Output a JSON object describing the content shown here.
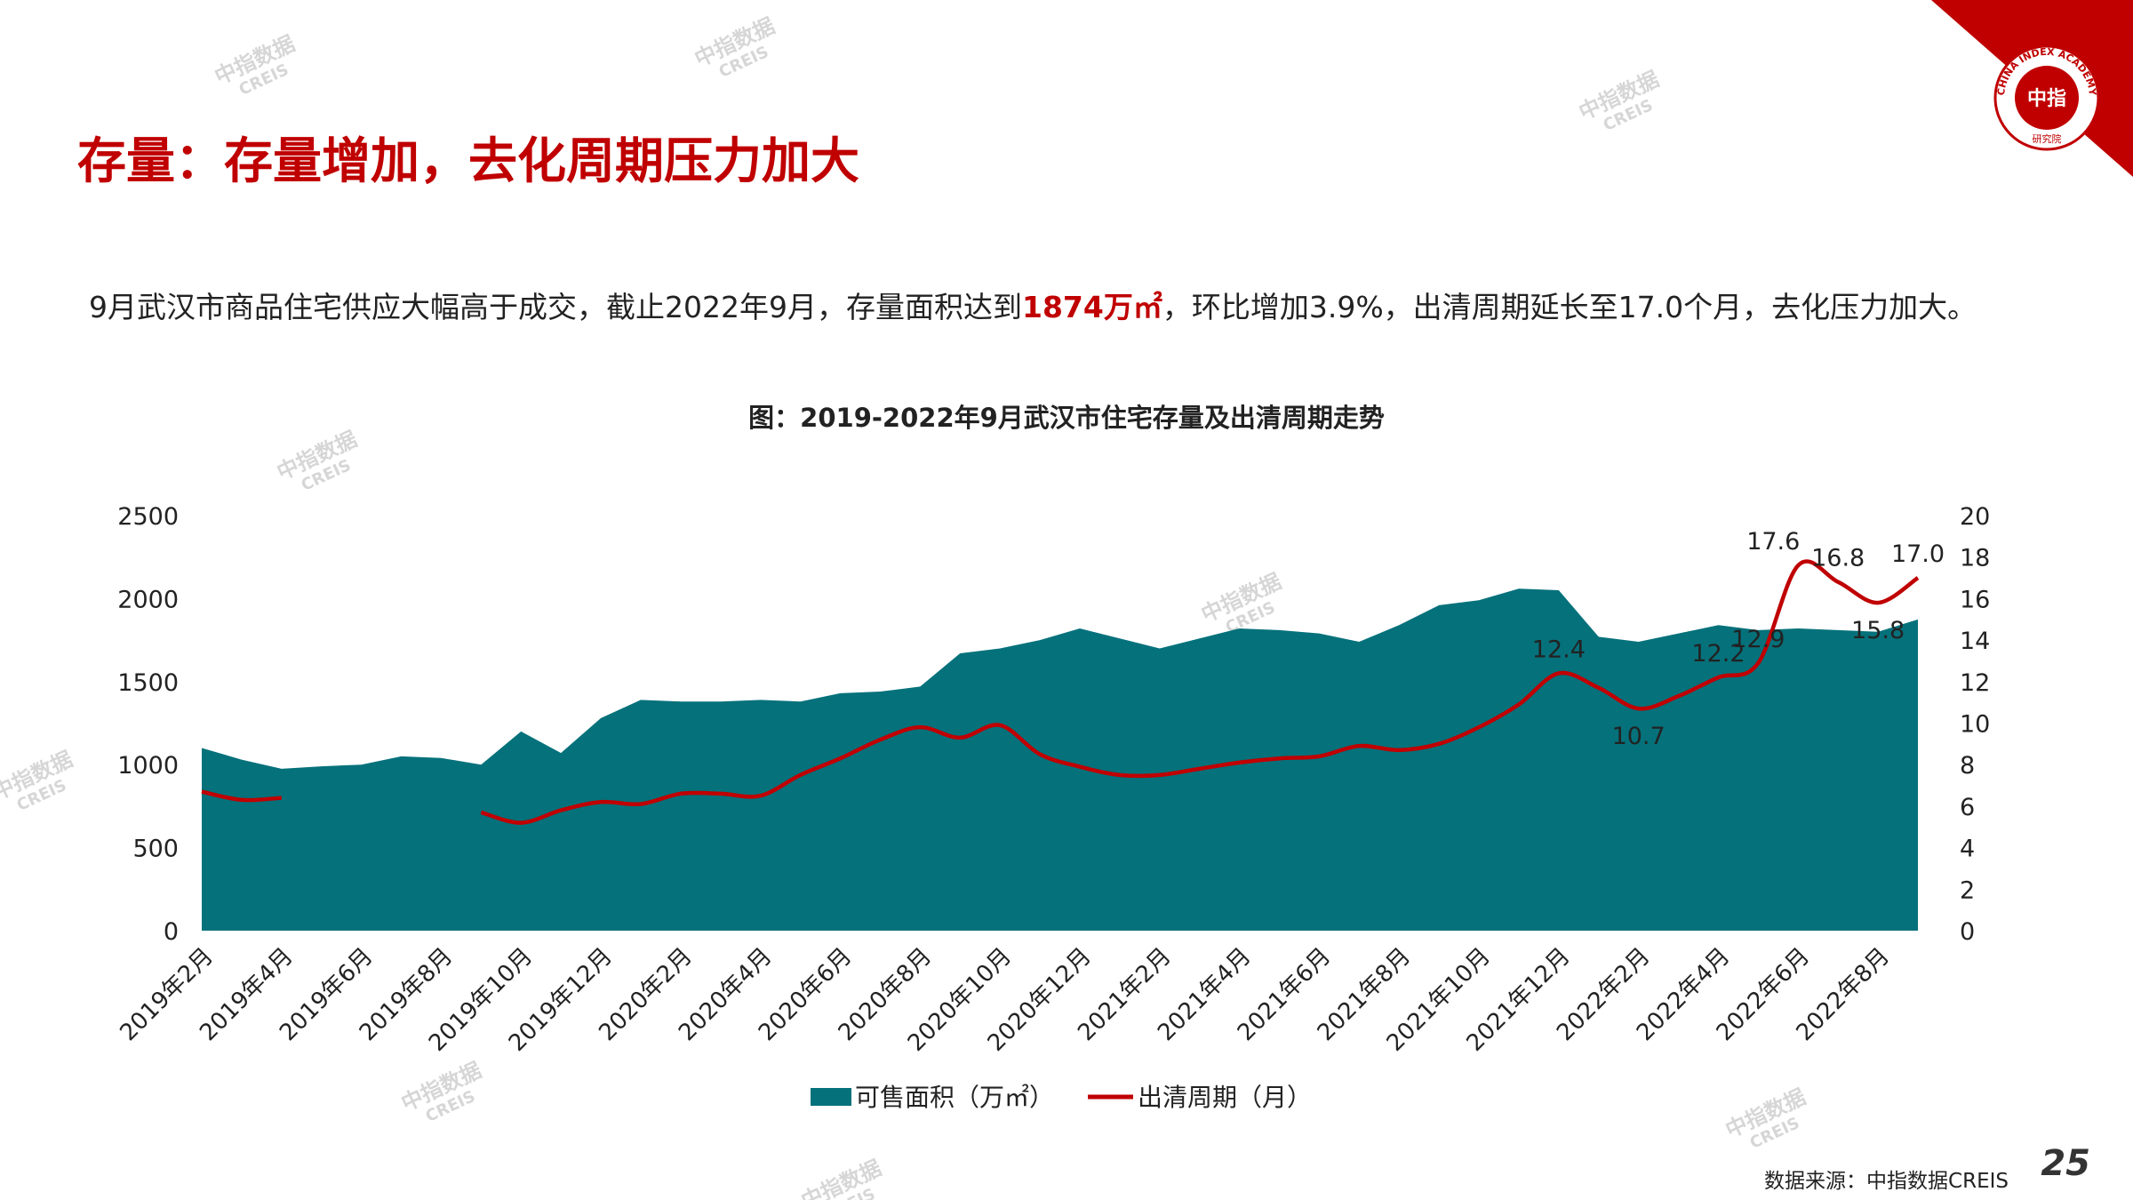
{
  "header": {
    "title": "存量：存量增加，去化周期压力加大"
  },
  "summary": {
    "before": "9月武汉市商品住宅供应大幅高于成交，截止2022年9月，存量面积达到",
    "highlight": "1874万㎡",
    "after": "，环比增加3.9%，出清周期延长至17.0个月，去化压力加大。"
  },
  "logo": {
    "ring": "CHINA INDEX ACADEMY",
    "center": "中指",
    "bottom": "研究院"
  },
  "watermark": {
    "line1": "中指数据",
    "line2": "CREIS"
  },
  "footer": {
    "source": "数据来源：中指数据CREIS",
    "page": "25"
  },
  "chart_data": {
    "type": "area-line",
    "title": "图：2019-2022年9月武汉市住宅存量及出清周期走势",
    "categories": [
      "2019年2月",
      null,
      "2019年4月",
      null,
      "2019年6月",
      null,
      "2019年8月",
      null,
      "2019年10月",
      null,
      "2019年12月",
      null,
      "2020年2月",
      null,
      "2020年4月",
      null,
      "2020年6月",
      null,
      "2020年8月",
      null,
      "2020年10月",
      null,
      "2020年12月",
      null,
      "2021年2月",
      null,
      "2021年4月",
      null,
      "2021年6月",
      null,
      "2021年8月",
      null,
      "2021年10月",
      null,
      "2021年12月",
      null,
      "2022年2月",
      null,
      "2022年4月",
      null,
      "2022年6月",
      null,
      "2022年8月",
      null
    ],
    "series": [
      {
        "name": "可售面积（万㎡）",
        "color": "#05717b",
        "values": [
          1100,
          1030,
          975,
          990,
          1000,
          1050,
          1040,
          1000,
          1200,
          1070,
          1280,
          1390,
          1380,
          1380,
          1390,
          1380,
          1430,
          1440,
          1470,
          1670,
          1700,
          1750,
          1820,
          1760,
          1700,
          1760,
          1820,
          1810,
          1790,
          1740,
          1840,
          1960,
          1990,
          2060,
          2050,
          1770,
          1740,
          1790,
          1840,
          1810,
          1820,
          1810,
          1800,
          1874
        ]
      },
      {
        "name": "出清周期（月）",
        "color": "#c00000",
        "axis": "y2",
        "values": [
          6.7,
          6.3,
          6.4,
          null,
          null,
          null,
          null,
          5.7,
          5.2,
          5.8,
          6.2,
          6.1,
          6.6,
          6.6,
          6.5,
          7.5,
          8.3,
          9.2,
          9.8,
          9.3,
          9.9,
          8.5,
          7.9,
          7.5,
          7.5,
          7.8,
          8.1,
          8.3,
          8.4,
          8.9,
          8.7,
          9.0,
          9.8,
          10.9,
          12.4,
          11.7,
          10.7,
          11.3,
          12.2,
          12.9,
          17.6,
          16.8,
          15.8,
          17.0
        ],
        "value_labels": [
          null,
          null,
          null,
          null,
          null,
          null,
          null,
          null,
          null,
          null,
          null,
          null,
          null,
          null,
          null,
          null,
          null,
          null,
          null,
          null,
          null,
          null,
          null,
          null,
          null,
          null,
          null,
          null,
          null,
          null,
          null,
          null,
          null,
          null,
          "12.4",
          null,
          "10.7",
          null,
          "12.2",
          "12.9",
          "17.6",
          "16.8",
          "15.8",
          "17.0"
        ]
      }
    ],
    "ylim": [
      0,
      2500
    ],
    "yticks": [
      0,
      500,
      1000,
      1500,
      2000,
      2500
    ],
    "y2lim": [
      0,
      20
    ],
    "y2ticks": [
      0,
      2,
      4,
      6,
      8,
      10,
      12,
      14,
      16,
      18,
      20
    ]
  }
}
